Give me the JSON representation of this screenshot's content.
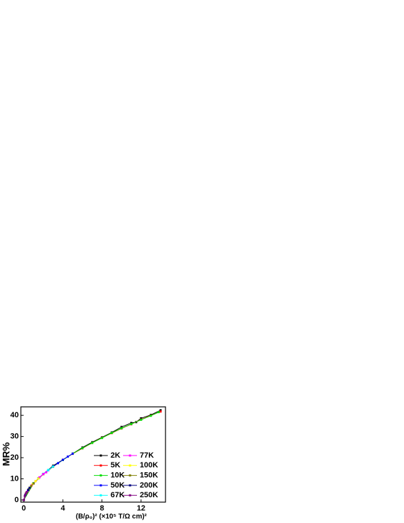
{
  "chart_data": {
    "type": "line",
    "x_label": "(B/ρ₀)² (×10⁵ T/Ω cm)²",
    "y_label": "MR%",
    "xlim": [
      -0.3,
      14.5
    ],
    "xticks": [
      0,
      4,
      8,
      12
    ],
    "ylim": [
      -1,
      44
    ],
    "yticks": [
      0,
      10,
      20,
      30,
      40
    ],
    "legend": "lower right",
    "series": [
      {
        "name": "2K",
        "color": "#000000",
        "x": [
          0,
          0.5,
          1,
          2,
          3,
          4,
          5,
          6,
          7,
          8,
          9,
          10,
          11,
          11.5,
          12,
          13,
          14
        ],
        "values": [
          0,
          5.1,
          7.9,
          12.3,
          16.2,
          19,
          21.9,
          24.8,
          27.3,
          29.6,
          31.9,
          34.5,
          36.4,
          36.8,
          38.6,
          40.2,
          42.4
        ]
      },
      {
        "name": "5K",
        "color": "#ff0000",
        "x": [
          0,
          1,
          2,
          3,
          4,
          5,
          6,
          7,
          8,
          9,
          10,
          11,
          12,
          13,
          14
        ],
        "values": [
          0,
          7.8,
          12.2,
          15.7,
          19,
          21.8,
          24.4,
          27,
          29.4,
          31.6,
          33.8,
          35.8,
          38,
          39.9,
          41.8
        ]
      },
      {
        "name": "10K",
        "color": "#00dd00",
        "x": [
          0,
          1,
          2,
          3,
          4,
          5,
          6,
          7,
          8,
          9,
          10,
          11,
          12,
          13,
          13.8
        ],
        "values": [
          0,
          7.9,
          12.3,
          15.8,
          18.9,
          21.9,
          24.5,
          27,
          29.3,
          31.7,
          33.9,
          35.9,
          37.9,
          39.8,
          41.5
        ]
      },
      {
        "name": "50K",
        "color": "#0000ff",
        "x": [
          0,
          0.5,
          1,
          1.5,
          2,
          2.5,
          3,
          3.5,
          4,
          4.5,
          5
        ],
        "values": [
          0,
          5.2,
          7.9,
          10.3,
          12.3,
          14.1,
          15.9,
          17.4,
          19,
          20.5,
          21.9
        ]
      },
      {
        "name": "67K",
        "color": "#00ffff",
        "x": [
          0,
          0.5,
          1,
          1.5,
          2,
          2.5,
          3
        ],
        "values": [
          0,
          5.1,
          8,
          10.2,
          12.4,
          14.2,
          15.8
        ]
      },
      {
        "name": "77K",
        "color": "#ff00ff",
        "x": [
          0,
          0.4,
          0.8,
          1.2,
          1.6,
          2,
          2.3
        ],
        "values": [
          0,
          4.4,
          7,
          8.9,
          10.7,
          12.3,
          13.1
        ]
      },
      {
        "name": "100K",
        "color": "#ffff00",
        "x": [
          0,
          0.3,
          0.6,
          0.9,
          1.2,
          1.5
        ],
        "values": [
          0,
          3.7,
          5.9,
          7.5,
          8.9,
          10.2
        ]
      },
      {
        "name": "150K",
        "color": "#808000",
        "x": [
          0,
          0.25,
          0.5,
          0.75,
          1
        ],
        "values": [
          0,
          3.3,
          5.1,
          6.6,
          7.9
        ]
      },
      {
        "name": "200K",
        "color": "#000080",
        "x": [
          0,
          0.15,
          0.3,
          0.45,
          0.6
        ],
        "values": [
          0,
          2.4,
          3.7,
          4.7,
          5.8
        ]
      },
      {
        "name": "250K",
        "color": "#800080",
        "x": [
          0,
          0.1,
          0.2,
          0.3
        ],
        "values": [
          0,
          1.9,
          3.0,
          3.7
        ]
      }
    ]
  }
}
